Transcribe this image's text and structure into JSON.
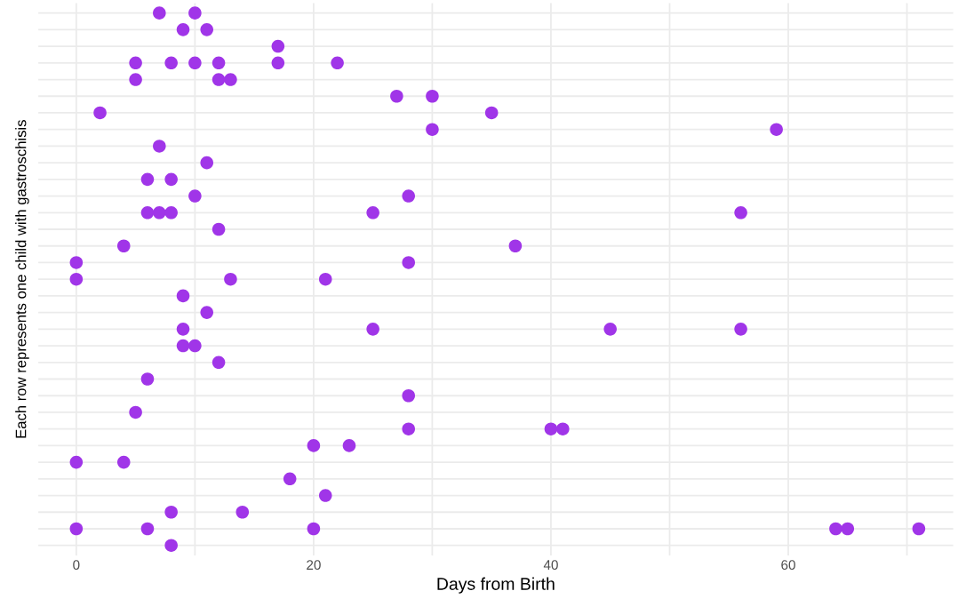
{
  "chart_data": {
    "type": "scatter",
    "orientation": "horizontal",
    "xlabel": "Days from Birth",
    "ylabel": "Each row represents one child with gastroschisis",
    "categories": [
      null,
      null,
      null,
      null,
      null,
      null,
      null,
      null,
      null,
      null,
      null,
      null,
      null,
      null,
      null,
      null,
      null,
      null,
      null,
      null,
      null,
      null,
      null,
      null,
      null,
      null,
      null,
      null,
      null,
      null,
      null,
      null,
      null
    ],
    "series": [
      {
        "color": "#a035e8",
        "values": [
          7,
          9,
          17,
          5,
          5,
          27,
          2,
          30,
          7,
          11,
          6,
          10,
          6,
          12,
          4,
          0,
          0,
          9,
          11,
          9,
          9,
          12,
          6,
          28,
          5,
          28,
          20,
          0,
          18,
          21,
          8,
          0,
          8
        ]
      },
      {
        "color": "#a035e8",
        "values": [
          10,
          11,
          null,
          8,
          12,
          30,
          35,
          59,
          null,
          null,
          8,
          28,
          7,
          null,
          37,
          28,
          13,
          null,
          null,
          25,
          10,
          null,
          null,
          null,
          null,
          40,
          23,
          4,
          null,
          null,
          14,
          6,
          null
        ]
      },
      {
        "color": "#a035e8",
        "values": [
          null,
          null,
          null,
          10,
          13,
          null,
          null,
          null,
          null,
          null,
          null,
          null,
          8,
          null,
          null,
          null,
          21,
          null,
          null,
          45,
          null,
          null,
          null,
          null,
          null,
          41,
          null,
          null,
          null,
          null,
          null,
          20,
          null
        ]
      },
      {
        "color": "#a035e8",
        "values": [
          null,
          null,
          null,
          12,
          null,
          null,
          null,
          null,
          null,
          null,
          null,
          null,
          25,
          null,
          null,
          null,
          null,
          null,
          null,
          56,
          null,
          null,
          null,
          null,
          null,
          null,
          null,
          null,
          null,
          null,
          null,
          64,
          null
        ]
      },
      {
        "color": "#a035e8",
        "values": [
          null,
          null,
          null,
          17,
          null,
          null,
          null,
          null,
          null,
          null,
          null,
          null,
          56,
          null,
          null,
          null,
          null,
          null,
          null,
          null,
          null,
          null,
          null,
          null,
          null,
          null,
          null,
          null,
          null,
          null,
          null,
          65,
          null
        ]
      },
      {
        "color": "#a035e8",
        "values": [
          null,
          null,
          null,
          22,
          null,
          null,
          null,
          null,
          null,
          null,
          null,
          null,
          null,
          null,
          null,
          null,
          null,
          null,
          null,
          null,
          null,
          null,
          null,
          null,
          null,
          null,
          null,
          null,
          null,
          null,
          null,
          71,
          null
        ]
      }
    ],
    "xlim": [
      -3.2,
      73.9
    ],
    "xticks": [
      0,
      {
        "value": 10,
        "label": null
      },
      20,
      {
        "value": 30,
        "label": null
      },
      40,
      {
        "value": 50,
        "label": null
      },
      60,
      {
        "value": 70,
        "label": null
      }
    ],
    "grid": true,
    "marker": "circle",
    "tick_labels": "x",
    "legend": false
  }
}
